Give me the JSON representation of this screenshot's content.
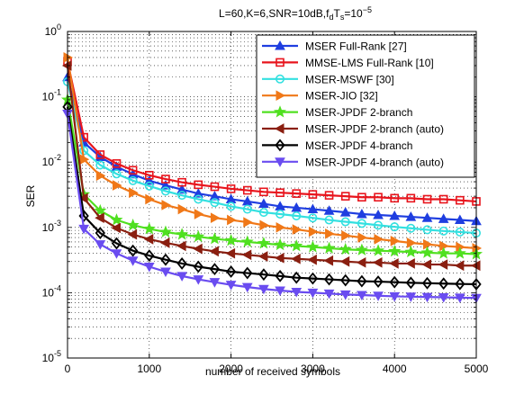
{
  "chart_data": {
    "type": "line",
    "title": {
      "main": "L=60,K=6,SNR=10dB,f",
      "sub1": "d",
      "mid": "T",
      "sub2": "s",
      "eq": "=10",
      "sup": "−5"
    },
    "xlabel": "number of received symbols",
    "ylabel": "SER",
    "xlim": [
      0,
      5000
    ],
    "ylim": [
      1e-05,
      1
    ],
    "yscale": "log",
    "grid": true,
    "legend_position": "top-right",
    "xticks": [
      0,
      1000,
      2000,
      3000,
      4000,
      5000
    ],
    "xtick_labels": [
      "0",
      "1000",
      "2000",
      "3000",
      "4000",
      "5000"
    ],
    "yticks": [
      {
        "base": "10",
        "exp": "0",
        "value": 1
      },
      {
        "base": "10",
        "exp": "-1",
        "value": 0.1
      },
      {
        "base": "10",
        "exp": "-2",
        "value": 0.01
      },
      {
        "base": "10",
        "exp": "-3",
        "value": 0.001
      },
      {
        "base": "10",
        "exp": "-4",
        "value": 0.0001
      },
      {
        "base": "10",
        "exp": "-5",
        "value": 1e-05
      }
    ],
    "x": [
      0,
      200,
      400,
      600,
      800,
      1000,
      1200,
      1400,
      1600,
      1800,
      2000,
      2200,
      2400,
      2600,
      2800,
      3000,
      3200,
      3400,
      3600,
      3800,
      4000,
      4200,
      4400,
      4600,
      4800,
      5000
    ],
    "series": [
      {
        "name": "MSER Full-Rank [27]",
        "color": "#1f3ee0",
        "marker": "triangle-up",
        "values": [
          0.2,
          0.02,
          0.012,
          0.0085,
          0.0065,
          0.0052,
          0.0044,
          0.0038,
          0.0033,
          0.003,
          0.0027,
          0.0025,
          0.0023,
          0.0021,
          0.002,
          0.0019,
          0.0018,
          0.0017,
          0.0016,
          0.00155,
          0.0015,
          0.00145,
          0.0014,
          0.00135,
          0.0013,
          0.00125
        ]
      },
      {
        "name": "MMSE-LMS Full-Rank [10]",
        "color": "#e8141c",
        "marker": "square",
        "values": [
          0.35,
          0.024,
          0.013,
          0.0095,
          0.0075,
          0.0063,
          0.0055,
          0.0049,
          0.0045,
          0.0042,
          0.0039,
          0.0037,
          0.0035,
          0.0034,
          0.0033,
          0.0032,
          0.0031,
          0.003,
          0.0029,
          0.0029,
          0.0028,
          0.0028,
          0.0027,
          0.0027,
          0.0026,
          0.0025
        ]
      },
      {
        "name": "MSER-MSWF [30]",
        "color": "#33e0e0",
        "marker": "circle",
        "values": [
          0.17,
          0.015,
          0.009,
          0.0066,
          0.0052,
          0.0043,
          0.0036,
          0.0031,
          0.0027,
          0.0024,
          0.0021,
          0.0019,
          0.0017,
          0.0016,
          0.0015,
          0.0014,
          0.0013,
          0.00122,
          0.00115,
          0.00108,
          0.00102,
          0.00097,
          0.00092,
          0.00088,
          0.00085,
          0.00082
        ]
      },
      {
        "name": "MSER-JIO [32]",
        "color": "#f07818",
        "marker": "triangle-right",
        "values": [
          0.4,
          0.011,
          0.0062,
          0.0044,
          0.0034,
          0.0027,
          0.0022,
          0.0019,
          0.0016,
          0.0014,
          0.0013,
          0.0012,
          0.00108,
          0.001,
          0.00093,
          0.00086,
          0.0008,
          0.00075,
          0.0007,
          0.00066,
          0.00062,
          0.00058,
          0.00055,
          0.00052,
          0.0005,
          0.00048
        ]
      },
      {
        "name": "MSER-JPDF 2-branch",
        "color": "#50e020",
        "marker": "star",
        "values": [
          0.09,
          0.0032,
          0.0018,
          0.0013,
          0.00108,
          0.00095,
          0.00085,
          0.00078,
          0.00072,
          0.00067,
          0.00063,
          0.0006,
          0.00057,
          0.00054,
          0.00052,
          0.0005,
          0.00048,
          0.00046,
          0.00045,
          0.00044,
          0.00043,
          0.00042,
          0.00041,
          0.0004,
          0.0004,
          0.00039
        ]
      },
      {
        "name": "MSER-JPDF 2-branch (auto)",
        "color": "#8a1f10",
        "marker": "triangle-left",
        "values": [
          0.3,
          0.0028,
          0.0014,
          0.00098,
          0.00078,
          0.00066,
          0.00058,
          0.00052,
          0.00047,
          0.00043,
          0.0004,
          0.00038,
          0.00036,
          0.00034,
          0.00033,
          0.00032,
          0.00031,
          0.0003,
          0.00029,
          0.00029,
          0.00028,
          0.00028,
          0.00027,
          0.00027,
          0.00026,
          0.00026
        ]
      },
      {
        "name": "MSER-JPDF 4-branch",
        "color": "#000000",
        "marker": "diamond",
        "values": [
          0.07,
          0.0015,
          0.00082,
          0.00057,
          0.00044,
          0.00037,
          0.00032,
          0.00028,
          0.00025,
          0.00023,
          0.00021,
          0.0002,
          0.00019,
          0.00018,
          0.00017,
          0.000165,
          0.00016,
          0.000155,
          0.00015,
          0.000148,
          0.000145,
          0.000142,
          0.00014,
          0.000138,
          0.000136,
          0.000135
        ]
      },
      {
        "name": "MSER-JPDF 4-branch (auto)",
        "color": "#6a4cf0",
        "marker": "triangle-down",
        "values": [
          0.055,
          0.00095,
          0.00055,
          0.0004,
          0.00031,
          0.00025,
          0.00021,
          0.00018,
          0.00016,
          0.000145,
          0.000132,
          0.000122,
          0.000114,
          0.000108,
          0.000103,
          0.0001,
          9.7e-05,
          9.4e-05,
          9.2e-05,
          9e-05,
          8.8e-05,
          8.7e-05,
          8.6e-05,
          8.5e-05,
          8.4e-05,
          8.3e-05
        ]
      }
    ]
  }
}
